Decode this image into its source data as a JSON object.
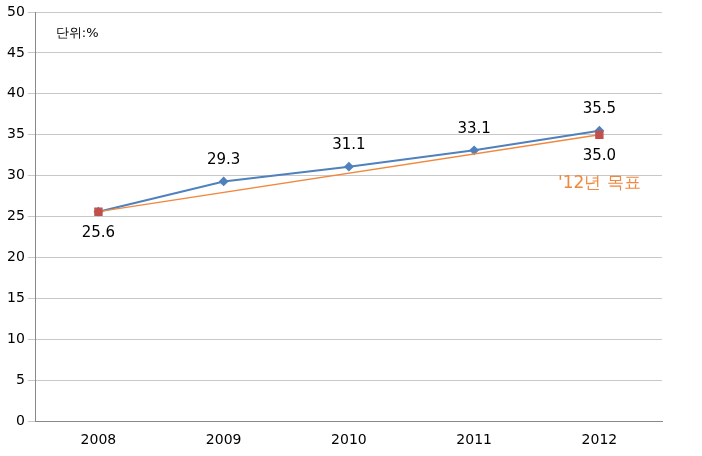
{
  "chart_data": {
    "type": "line",
    "unit": "단위:%",
    "annotation": "'12년 목표",
    "categories": [
      "2008",
      "2009",
      "2010",
      "2011",
      "2012"
    ],
    "ylim": [
      0,
      50
    ],
    "yticks": [
      0,
      5,
      10,
      15,
      20,
      25,
      30,
      35,
      40,
      45,
      50
    ],
    "grid": true,
    "data_labels": true,
    "series": [
      {
        "color": "#4f81bd",
        "marker": "diamond",
        "line_style": "solid",
        "values": [
          25.6,
          29.3,
          31.1,
          33.1,
          35.5
        ]
      },
      {
        "color": "#f0883e",
        "marker": "square",
        "line_style": "solid",
        "values": [
          25.6,
          null,
          null,
          null,
          35.0
        ],
        "value_labels": [
          null,
          null,
          null,
          null,
          "35.0"
        ]
      }
    ]
  }
}
